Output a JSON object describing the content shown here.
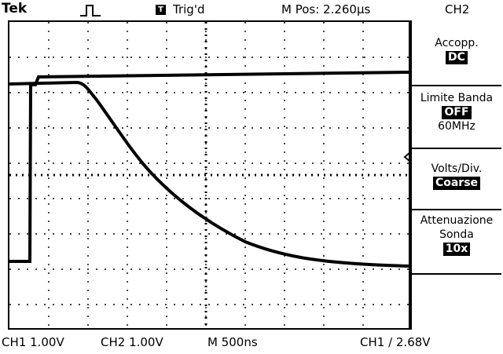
{
  "header": {
    "brand": "Tek",
    "trigger_icon": "T",
    "trigger_status": "Trig'd",
    "position": "M Pos: 2.260µs",
    "channel": "CH2"
  },
  "menu": {
    "coupling": {
      "label": "Accopp.",
      "value": "DC"
    },
    "bandwidth": {
      "label": "Limite Banda",
      "value": "OFF",
      "extra": "60MHz"
    },
    "volts_div": {
      "label": "Volts/Div.",
      "value": "Coarse"
    },
    "probe": {
      "label_line1": "Attenuazione",
      "label_line2": "Sonda",
      "value": "10x"
    }
  },
  "footer": {
    "ch1_scale": "CH1 1.00V",
    "ch2_scale": "CH2 1.00V",
    "timebase": "M 500ns",
    "trigger": "CH1 ∕ 2.68V"
  },
  "icons": {
    "trigger_edge": "rising-edge-icon",
    "trigger_marker": "arrow-left-icon"
  }
}
